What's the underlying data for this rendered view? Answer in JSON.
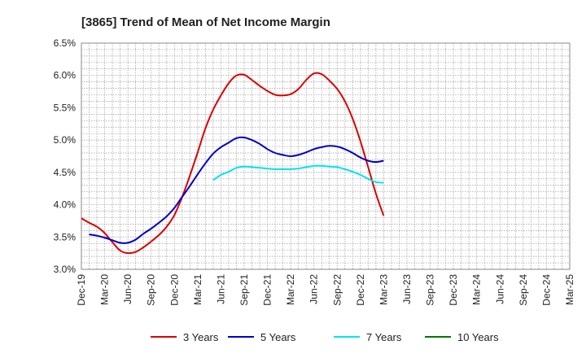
{
  "chart_data": {
    "type": "line",
    "title": "[3865]  Trend of Mean of Net Income Margin",
    "xlabel": "",
    "ylabel": "",
    "x_tick_labels": [
      "Dec-19",
      "Mar-20",
      "Jun-20",
      "Sep-20",
      "Dec-20",
      "Mar-21",
      "Jun-21",
      "Sep-21",
      "Dec-21",
      "Mar-22",
      "Jun-22",
      "Sep-22",
      "Dec-22",
      "Mar-23",
      "Jun-23",
      "Sep-23",
      "Dec-23",
      "Mar-24",
      "Jun-24",
      "Sep-24",
      "Dec-24",
      "Mar-25"
    ],
    "y_tick_labels": [
      "6.5%",
      "6.0%",
      "5.5%",
      "5.0%",
      "4.5%",
      "4.0%",
      "3.5%",
      "3.0%"
    ],
    "ylim": [
      3.0,
      6.5
    ],
    "grid": true,
    "legend_position": "bottom",
    "series": [
      {
        "name": "3 Years",
        "color": "#dd0000",
        "values": [
          3.79,
          3.72,
          3.66,
          3.56,
          3.42,
          3.29,
          3.25,
          3.27,
          3.34,
          3.43,
          3.53,
          3.66,
          3.84,
          4.12,
          4.45,
          4.81,
          5.18,
          5.47,
          5.69,
          5.88,
          6.0,
          6.01,
          5.93,
          5.84,
          5.76,
          5.7,
          5.69,
          5.71,
          5.79,
          5.93,
          6.03,
          6.02,
          5.92,
          5.79,
          5.6,
          5.33,
          4.98,
          4.58,
          4.17,
          3.83
        ]
      },
      {
        "name": "5 Years",
        "color": "#0000cc",
        "values": [
          null,
          3.54,
          3.52,
          3.49,
          3.45,
          3.41,
          3.41,
          3.46,
          3.55,
          3.63,
          3.72,
          3.82,
          3.95,
          4.12,
          4.29,
          4.47,
          4.64,
          4.79,
          4.89,
          4.96,
          5.03,
          5.04,
          5.0,
          4.94,
          4.86,
          4.8,
          4.77,
          4.75,
          4.77,
          4.81,
          4.86,
          4.89,
          4.91,
          4.9,
          4.86,
          4.8,
          4.73,
          4.68,
          4.66,
          4.68
        ]
      },
      {
        "name": "7 Years",
        "color": "#00e5ee",
        "values": [
          null,
          null,
          null,
          null,
          null,
          null,
          null,
          null,
          null,
          null,
          null,
          null,
          null,
          null,
          null,
          null,
          null,
          4.38,
          4.46,
          4.51,
          4.57,
          4.59,
          4.58,
          4.57,
          4.56,
          4.55,
          4.55,
          4.55,
          4.56,
          4.58,
          4.6,
          4.6,
          4.59,
          4.58,
          4.55,
          4.51,
          4.46,
          4.4,
          4.35,
          4.34
        ]
      },
      {
        "name": "10 Years",
        "color": "#007700",
        "values": []
      }
    ]
  }
}
